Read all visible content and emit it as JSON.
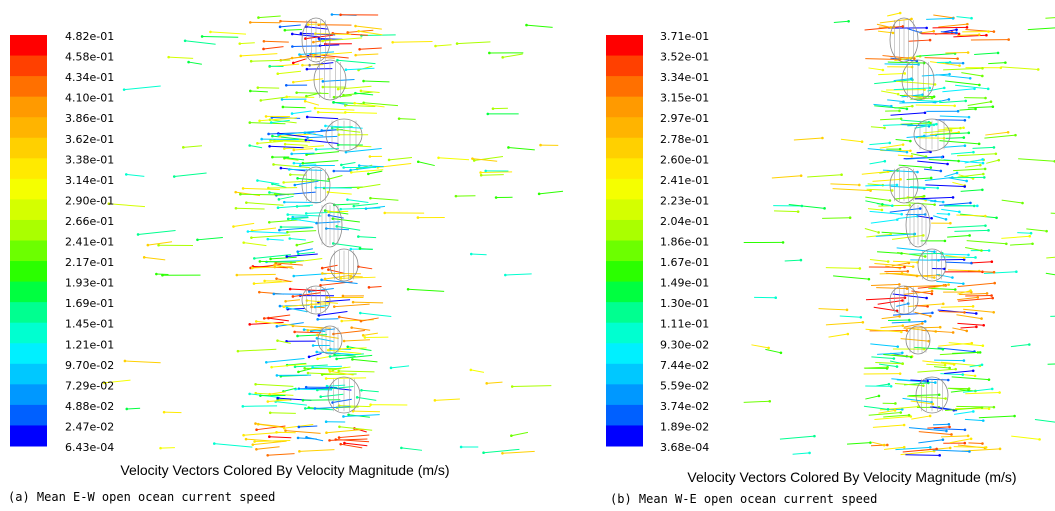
{
  "panels": [
    {
      "colorbar": {
        "labels": [
          "4.82e-01",
          "4.58e-01",
          "4.34e-01",
          "4.10e-01",
          "3.86e-01",
          "3.62e-01",
          "3.38e-01",
          "3.14e-01",
          "2.90e-01",
          "2.66e-01",
          "2.41e-01",
          "2.17e-01",
          "1.93e-01",
          "1.69e-01",
          "1.45e-01",
          "1.21e-01",
          "9.70e-02",
          "7.29e-02",
          "4.88e-02",
          "2.47e-02",
          "6.43e-04"
        ],
        "colors": [
          "#ff0000",
          "#ff4000",
          "#ff7000",
          "#ff9a00",
          "#ffb400",
          "#ffd000",
          "#ffea00",
          "#f5ff00",
          "#d4ff00",
          "#aaff00",
          "#6cff00",
          "#2bff00",
          "#00ff40",
          "#00ff90",
          "#00ffd0",
          "#00f0ff",
          "#00c8ff",
          "#0098ff",
          "#0060ff",
          "#0000ff"
        ]
      },
      "plot_title": "Velocity Vectors Colored By Velocity Magnitude (m/s)",
      "caption": "(a)  Mean E-W open ocean current speed"
    },
    {
      "colorbar": {
        "labels": [
          "3.71e-01",
          "3.52e-01",
          "3.34e-01",
          "3.15e-01",
          "2.97e-01",
          "2.78e-01",
          "2.60e-01",
          "2.41e-01",
          "2.23e-01",
          "2.04e-01",
          "1.86e-01",
          "1.67e-01",
          "1.49e-01",
          "1.30e-01",
          "1.11e-01",
          "9.30e-02",
          "7.44e-02",
          "5.59e-02",
          "3.74e-02",
          "1.89e-02",
          "3.68e-04"
        ],
        "colors": [
          "#ff0000",
          "#ff4000",
          "#ff7000",
          "#ff9a00",
          "#ffb400",
          "#ffd000",
          "#ffea00",
          "#f5ff00",
          "#d4ff00",
          "#aaff00",
          "#6cff00",
          "#2bff00",
          "#00ff40",
          "#00ff90",
          "#00ffd0",
          "#00f0ff",
          "#00c8ff",
          "#0098ff",
          "#0060ff",
          "#0000ff"
        ]
      },
      "plot_title": "Velocity Vectors Colored By Velocity Magnitude (m/s)",
      "caption": "(b)  Mean W-E open ocean current speed"
    }
  ]
}
